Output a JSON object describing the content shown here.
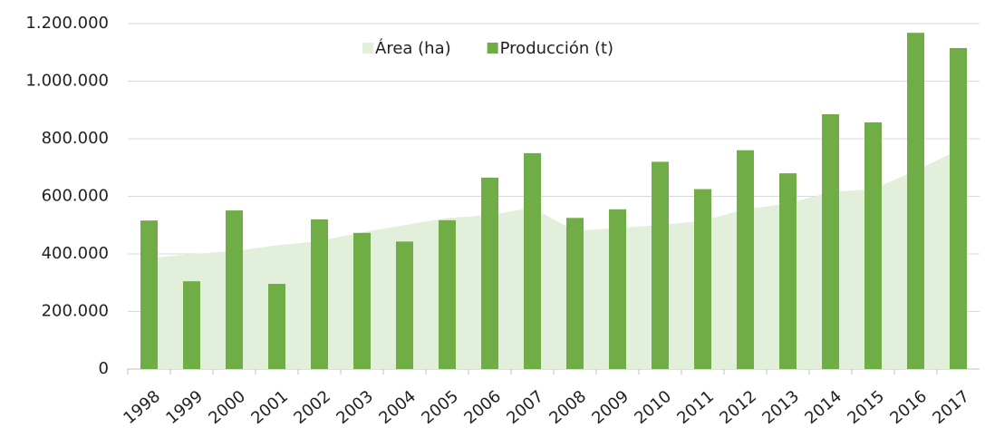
{
  "chart_data": {
    "type": "bar_area",
    "categories": [
      "1998",
      "1999",
      "2000",
      "2001",
      "2002",
      "2003",
      "2004",
      "2005",
      "2006",
      "2007",
      "2008",
      "2009",
      "2010",
      "2011",
      "2012",
      "2013",
      "2014",
      "2015",
      "2016",
      "2017"
    ],
    "series": [
      {
        "name": "Área (ha)",
        "type": "area",
        "color": "#e2efda",
        "values": [
          385000,
          400000,
          410000,
          430000,
          445000,
          475000,
          500000,
          525000,
          535000,
          560000,
          480000,
          490000,
          500000,
          515000,
          555000,
          575000,
          615000,
          625000,
          690000,
          760000
        ]
      },
      {
        "name": "Producción (t)",
        "type": "bar",
        "color": "#70ad47",
        "values": [
          516000,
          305000,
          551000,
          296000,
          520000,
          473000,
          443000,
          517000,
          665000,
          750000,
          525000,
          555000,
          720000,
          625000,
          760000,
          680000,
          885000,
          857000,
          1168000,
          1115000
        ]
      }
    ],
    "ylim": [
      0,
      1200000
    ],
    "yticks": [
      0,
      {
        "value": 200000,
        "label": "200.000"
      },
      {
        "value": 400000,
        "label": "400.000"
      },
      {
        "value": 600000,
        "label": "600.000"
      },
      {
        "value": 800000,
        "label": "800.000"
      },
      {
        "value": 1000000,
        "label": "1.000.000"
      },
      {
        "value": 1200000,
        "label": "1.200.000"
      }
    ],
    "grid": true,
    "legend": "top"
  }
}
